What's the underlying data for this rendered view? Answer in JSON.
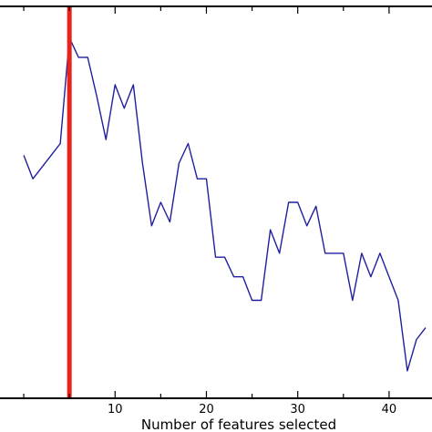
{
  "chart_data": {
    "type": "line",
    "title": "",
    "xlabel": "Number of features selected",
    "ylabel": "",
    "xlim": [
      -2.6,
      44.7
    ],
    "ylim": [
      0,
      1
    ],
    "grid": false,
    "legend": "none",
    "x_ticks": [
      10,
      20,
      30,
      40
    ],
    "x_tick_labels": [
      "10",
      "20",
      "30",
      "40"
    ],
    "series": [
      {
        "color": "#1f1fa0",
        "x": [
          0,
          1,
          2,
          3,
          4,
          5,
          6,
          7,
          8,
          9,
          10,
          11,
          12,
          13,
          14,
          15,
          16,
          17,
          18,
          19,
          20,
          21,
          22,
          23,
          24,
          25,
          26,
          27,
          28,
          29,
          30,
          31,
          32,
          33,
          34,
          35,
          36,
          37,
          38,
          39,
          40,
          41,
          42,
          43,
          44
        ],
        "y": [
          0.62,
          0.56,
          0.59,
          0.62,
          0.65,
          0.92,
          0.87,
          0.87,
          0.77,
          0.66,
          0.8,
          0.74,
          0.8,
          0.6,
          0.44,
          0.5,
          0.45,
          0.6,
          0.65,
          0.56,
          0.56,
          0.36,
          0.36,
          0.31,
          0.31,
          0.25,
          0.25,
          0.43,
          0.37,
          0.5,
          0.5,
          0.44,
          0.49,
          0.37,
          0.37,
          0.37,
          0.25,
          0.37,
          0.31,
          0.37,
          0.31,
          0.25,
          0.07,
          0.15,
          0.18
        ]
      }
    ],
    "vertical_markers": [
      {
        "x": 5,
        "color": "#e8231c"
      }
    ]
  }
}
